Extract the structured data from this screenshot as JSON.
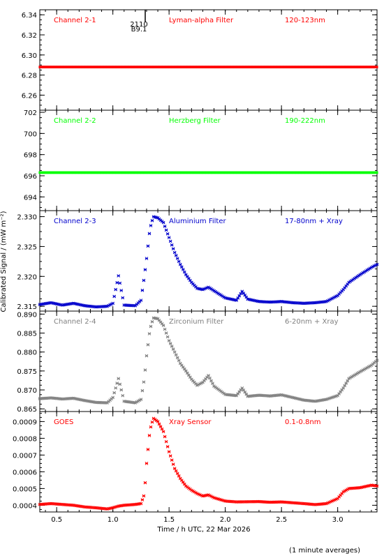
{
  "figure": {
    "xlabel": "Time / h UTC, 22 Mar 2026",
    "ylabel": "Calibrated Signal / (mW m⁻²)",
    "footnote": "(1 minute averages)",
    "marker": "2110\nB9.1"
  },
  "colors": {
    "red": "#ff0000",
    "green": "#00ff00",
    "blue": "#0000cc",
    "grey": "#808080",
    "axis": "#000000"
  },
  "chart_data": [
    {
      "type": "scatter",
      "channel": "Channel 2-1",
      "filter": "Lyman-alpha Filter",
      "band": "120-123nm",
      "color": "red",
      "xlim": [
        0.35,
        3.35
      ],
      "ylim": [
        6.245,
        6.345
      ],
      "yticks": [
        6.26,
        6.28,
        6.3,
        6.32,
        6.34
      ],
      "ytick_labels": [
        "6.26",
        "6.28",
        "6.30",
        "6.32",
        "6.34"
      ],
      "x": [
        0.35,
        0.5,
        1.0,
        1.5,
        2.0,
        2.5,
        3.0,
        3.35
      ],
      "y": [
        6.288,
        6.288,
        6.288,
        6.288,
        6.288,
        6.288,
        6.288,
        6.288
      ]
    },
    {
      "type": "scatter",
      "channel": "Channel 2-2",
      "filter": "Herzberg Filter",
      "band": "190-222nm",
      "color": "green",
      "xlim": [
        0.35,
        3.35
      ],
      "ylim": [
        692.7,
        702.2
      ],
      "yticks": [
        694,
        696,
        698,
        700,
        702
      ],
      "ytick_labels": [
        "694",
        "696",
        "698",
        "700",
        "702"
      ],
      "x": [
        0.35,
        0.5,
        1.0,
        1.5,
        2.0,
        2.5,
        3.0,
        3.35
      ],
      "y": [
        696.3,
        696.3,
        696.3,
        696.3,
        696.3,
        696.3,
        696.3,
        696.3
      ]
    },
    {
      "type": "scatter",
      "channel": "Channel 2-3",
      "filter": "Aluminium Filter",
      "band": "17-80nm + Xray",
      "color": "blue",
      "xlim": [
        0.35,
        3.35
      ],
      "ylim": [
        2.3142,
        2.331
      ],
      "yticks": [
        2.315,
        2.32,
        2.325,
        2.33
      ],
      "ytick_labels": [
        "2.315",
        "2.320",
        "2.325",
        "2.330"
      ],
      "x": [
        0.35,
        0.45,
        0.55,
        0.65,
        0.75,
        0.85,
        0.95,
        1.0,
        1.05,
        1.1,
        1.2,
        1.25,
        1.28,
        1.3,
        1.33,
        1.36,
        1.4,
        1.45,
        1.5,
        1.55,
        1.6,
        1.65,
        1.7,
        1.75,
        1.8,
        1.85,
        1.9,
        2.0,
        2.1,
        2.15,
        2.2,
        2.3,
        2.4,
        2.5,
        2.6,
        2.7,
        2.8,
        2.9,
        3.0,
        3.05,
        3.1,
        3.2,
        3.3,
        3.35
      ],
      "y": [
        2.3153,
        2.3156,
        2.3152,
        2.3155,
        2.3151,
        2.3149,
        2.315,
        2.3155,
        2.3201,
        2.3152,
        2.3151,
        2.316,
        2.32,
        2.323,
        2.328,
        2.33,
        2.3298,
        2.329,
        2.3265,
        2.324,
        2.322,
        2.3203,
        2.319,
        2.318,
        2.3178,
        2.3182,
        2.3176,
        2.3164,
        2.316,
        2.3175,
        2.3162,
        2.3158,
        2.3157,
        2.3158,
        2.3156,
        2.3155,
        2.3156,
        2.3158,
        2.3168,
        2.3178,
        2.319,
        2.3203,
        2.3215,
        2.322
      ]
    },
    {
      "type": "scatter",
      "channel": "Channel 2-4",
      "filter": "Zirconium Filter",
      "band": "6-20nm + Xray",
      "color": "grey",
      "xlim": [
        0.35,
        3.35
      ],
      "ylim": [
        0.8643,
        0.8908
      ],
      "yticks": [
        0.865,
        0.87,
        0.875,
        0.88,
        0.885,
        0.89
      ],
      "ytick_labels": [
        "0.865",
        "0.870",
        "0.875",
        "0.880",
        "0.885",
        "0.890"
      ],
      "x": [
        0.35,
        0.45,
        0.55,
        0.65,
        0.75,
        0.85,
        0.95,
        1.0,
        1.05,
        1.1,
        1.2,
        1.25,
        1.28,
        1.3,
        1.33,
        1.36,
        1.4,
        1.45,
        1.5,
        1.55,
        1.6,
        1.65,
        1.7,
        1.75,
        1.8,
        1.85,
        1.9,
        2.0,
        2.1,
        2.15,
        2.2,
        2.3,
        2.4,
        2.5,
        2.6,
        2.7,
        2.8,
        2.9,
        3.0,
        3.05,
        3.1,
        3.2,
        3.3,
        3.35
      ],
      "y": [
        0.8677,
        0.8679,
        0.8676,
        0.8678,
        0.8672,
        0.8667,
        0.8666,
        0.868,
        0.873,
        0.867,
        0.8666,
        0.8675,
        0.873,
        0.879,
        0.886,
        0.889,
        0.8888,
        0.887,
        0.883,
        0.88,
        0.877,
        0.875,
        0.8728,
        0.8712,
        0.872,
        0.8738,
        0.871,
        0.8688,
        0.8685,
        0.8705,
        0.8683,
        0.8686,
        0.8684,
        0.8687,
        0.868,
        0.8673,
        0.867,
        0.8675,
        0.8685,
        0.8705,
        0.873,
        0.8748,
        0.8765,
        0.8778
      ]
    },
    {
      "type": "scatter",
      "channel": "GOES",
      "filter": "Xray Sensor",
      "band": "0.1-0.8nm",
      "color": "red",
      "xlim": [
        0.35,
        3.35
      ],
      "ylim": [
        0.00036,
        0.00096
      ],
      "yticks": [
        0.0004,
        0.0005,
        0.0006,
        0.0007,
        0.0008,
        0.0009
      ],
      "ytick_labels": [
        "0.0004",
        "0.0005",
        "0.0006",
        "0.0007",
        "0.0008",
        "0.0009"
      ],
      "x": [
        0.35,
        0.45,
        0.55,
        0.65,
        0.75,
        0.85,
        0.95,
        1.0,
        1.05,
        1.1,
        1.2,
        1.25,
        1.28,
        1.3,
        1.33,
        1.36,
        1.4,
        1.45,
        1.5,
        1.55,
        1.6,
        1.65,
        1.7,
        1.75,
        1.8,
        1.85,
        1.9,
        2.0,
        2.1,
        2.2,
        2.3,
        2.4,
        2.5,
        2.6,
        2.7,
        2.8,
        2.9,
        3.0,
        3.05,
        3.1,
        3.2,
        3.3,
        3.35
      ],
      "y": [
        0.000405,
        0.00041,
        0.000405,
        0.0004,
        0.00039,
        0.000385,
        0.000378,
        0.000385,
        0.000395,
        0.0004,
        0.000405,
        0.00041,
        0.000465,
        0.00065,
        0.00085,
        0.00092,
        0.0009,
        0.00084,
        0.00072,
        0.00062,
        0.00056,
        0.000515,
        0.00049,
        0.00047,
        0.000455,
        0.000462,
        0.000445,
        0.000425,
        0.00042,
        0.000421,
        0.000422,
        0.000418,
        0.00042,
        0.000415,
        0.00041,
        0.000404,
        0.00041,
        0.00044,
        0.00048,
        0.0005,
        0.000505,
        0.00052,
        0.000515
      ]
    }
  ],
  "xaxis": {
    "ticks": [
      0.5,
      1.0,
      1.5,
      2.0,
      2.5,
      3.0
    ],
    "tick_labels": [
      "0.5",
      "1.0",
      "1.5",
      "2.0",
      "2.5",
      "3.0"
    ]
  }
}
